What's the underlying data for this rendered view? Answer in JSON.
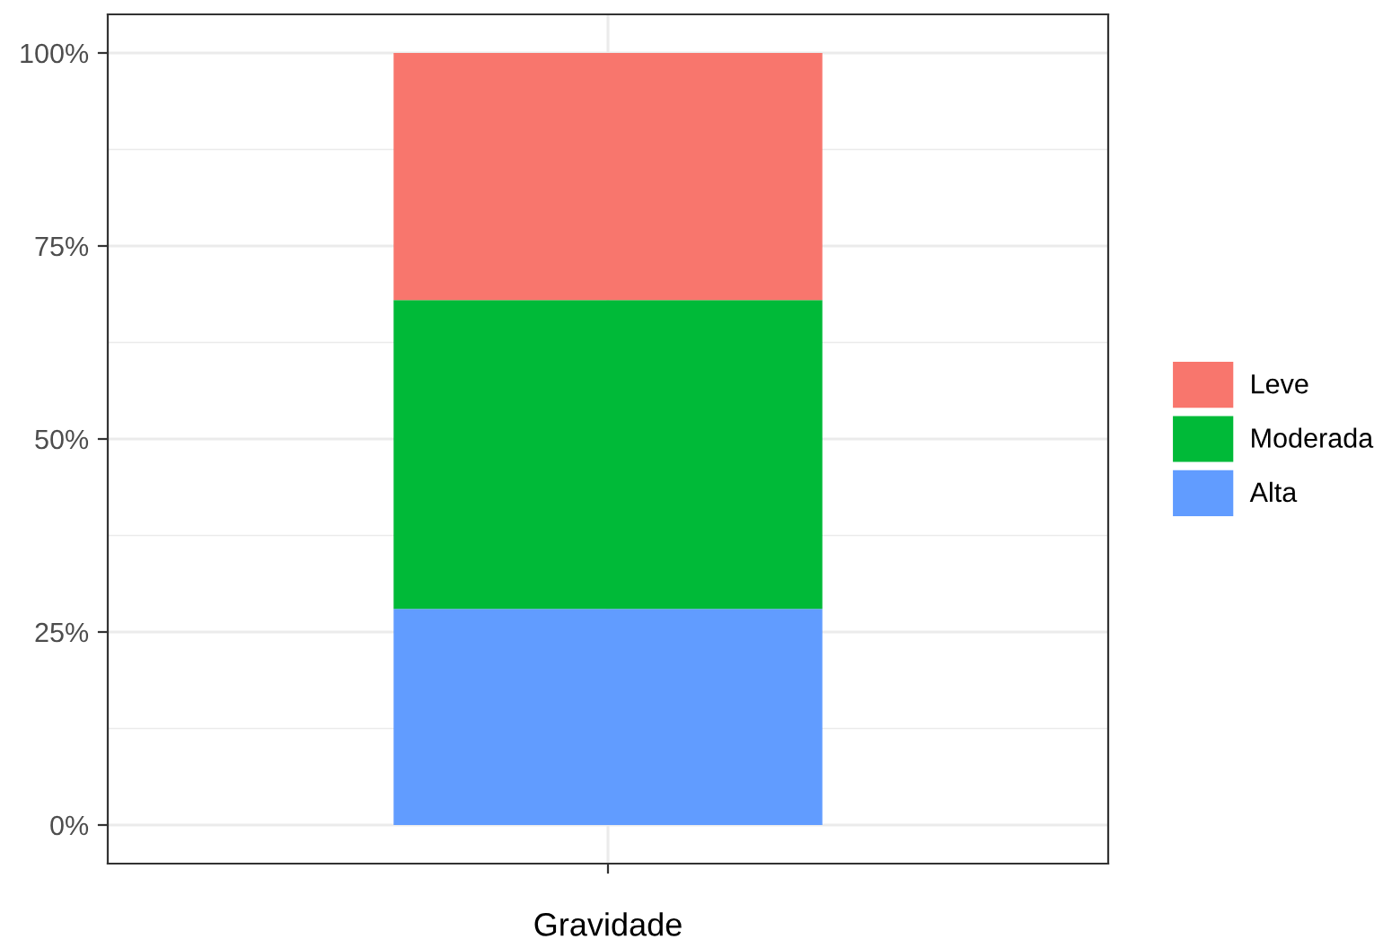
{
  "chart_data": {
    "type": "bar",
    "stacked": true,
    "categories": [
      null
    ],
    "xlabel": "Gravidade",
    "series": [
      {
        "name": "Alta",
        "color": "#619cff",
        "values": [
          28
        ]
      },
      {
        "name": "Moderada",
        "color": "#00ba38",
        "values": [
          40
        ]
      },
      {
        "name": "Leve",
        "color": "#f8766d",
        "values": [
          32
        ]
      }
    ],
    "ylim": [
      -5,
      105
    ],
    "yticks": [
      {
        "value": 0,
        "label": "0%"
      },
      {
        "value": 25,
        "label": "25%"
      },
      {
        "value": 50,
        "label": "50%"
      },
      {
        "value": 75,
        "label": "75%"
      },
      {
        "value": 100,
        "label": "100%"
      }
    ],
    "grid": true,
    "legend": "right"
  }
}
